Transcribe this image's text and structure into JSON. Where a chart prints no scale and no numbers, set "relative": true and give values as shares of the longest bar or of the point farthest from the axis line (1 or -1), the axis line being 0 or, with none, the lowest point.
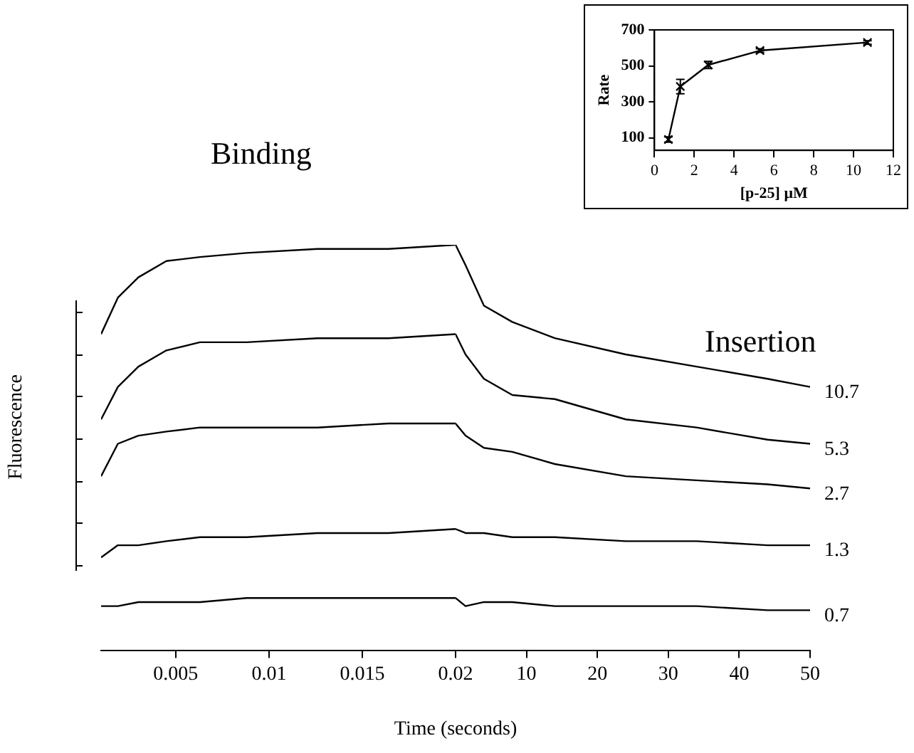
{
  "chart_data": [
    {
      "type": "line",
      "relative": true,
      "ylabel": "Fluorescence",
      "annotations": [
        "Binding"
      ],
      "xlim": [
        0.001,
        0.02
      ],
      "xticks": [
        0.005,
        0.01,
        0.015,
        0.02
      ],
      "x": [
        0.001,
        0.0019,
        0.003,
        0.0045,
        0.0063,
        0.0088,
        0.0126,
        0.0164,
        0.02
      ],
      "series": [
        {
          "color": "#000000",
          "values": [
            0.78,
            0.87,
            0.92,
            0.96,
            0.97,
            0.98,
            0.99,
            0.99,
            1.0
          ]
        },
        {
          "color": "#000000",
          "values": [
            0.57,
            0.65,
            0.7,
            0.74,
            0.76,
            0.76,
            0.77,
            0.77,
            0.78
          ]
        },
        {
          "color": "#000000",
          "values": [
            0.43,
            0.51,
            0.53,
            0.54,
            0.55,
            0.55,
            0.55,
            0.56,
            0.56
          ]
        },
        {
          "color": "#000000",
          "values": [
            0.23,
            0.26,
            0.26,
            0.27,
            0.28,
            0.28,
            0.29,
            0.29,
            0.3
          ]
        },
        {
          "color": "#000000",
          "values": [
            0.11,
            0.11,
            0.12,
            0.12,
            0.12,
            0.13,
            0.13,
            0.13,
            0.13
          ]
        }
      ]
    },
    {
      "type": "line",
      "relative": true,
      "xlabel": "Time (seconds)",
      "annotations": [
        "Insertion"
      ],
      "xlim": [
        0,
        50
      ],
      "xticks": [
        10,
        20,
        30,
        40,
        50
      ],
      "x": [
        0,
        1.4,
        4,
        8,
        14,
        24,
        34,
        44,
        50
      ],
      "series": [
        {
          "name": "10.7",
          "color": "#000000",
          "values": [
            1.0,
            0.95,
            0.85,
            0.81,
            0.77,
            0.73,
            0.7,
            0.67,
            0.65
          ]
        },
        {
          "name": "5.3",
          "color": "#000000",
          "values": [
            0.78,
            0.73,
            0.67,
            0.63,
            0.62,
            0.57,
            0.55,
            0.52,
            0.51
          ]
        },
        {
          "name": "2.7",
          "color": "#000000",
          "values": [
            0.56,
            0.53,
            0.5,
            0.49,
            0.46,
            0.43,
            0.42,
            0.41,
            0.4
          ]
        },
        {
          "name": "1.3",
          "color": "#000000",
          "values": [
            0.3,
            0.29,
            0.29,
            0.28,
            0.28,
            0.27,
            0.27,
            0.26,
            0.26
          ]
        },
        {
          "name": "0.7",
          "color": "#000000",
          "values": [
            0.13,
            0.11,
            0.12,
            0.12,
            0.11,
            0.11,
            0.11,
            0.1,
            0.1
          ]
        }
      ]
    },
    {
      "type": "line",
      "xlabel": "[p-25] μM",
      "ylabel": "Rate",
      "x": [
        0.7,
        1.3,
        2.7,
        5.3,
        10.7
      ],
      "values": [
        90,
        385,
        505,
        585,
        630
      ],
      "errors": [
        15,
        40,
        20,
        10,
        10
      ],
      "color": "#000000",
      "marker": "cross",
      "xlim": [
        0,
        12
      ],
      "xticks": [
        0,
        2,
        4,
        6,
        8,
        10,
        12
      ],
      "ylim": [
        30,
        700
      ],
      "yticks": [
        100,
        300,
        500,
        700
      ]
    }
  ]
}
